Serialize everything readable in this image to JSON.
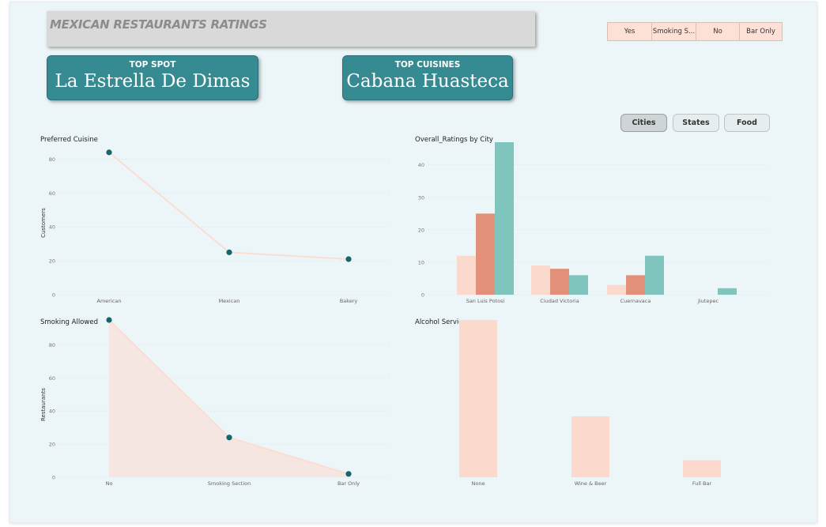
{
  "header": {
    "title": "MEXICAN RESTAURANTS RATINGS"
  },
  "slicer": {
    "items": [
      "Yes",
      "Smoking S...",
      "No",
      "Bar Only"
    ]
  },
  "cards": [
    {
      "label": "TOP SPOT",
      "value": "La Estrella De Dimas"
    },
    {
      "label": "TOP CUISINES",
      "value": "Cabana Huasteca"
    }
  ],
  "toggle": {
    "items": [
      "Cities",
      "States",
      "Food"
    ],
    "active": "Cities"
  },
  "colors": {
    "teal": "#15676b",
    "peach": "#fcd9cd",
    "salmon": "#e2907a",
    "mint": "#7fc4bd",
    "line": "#fcdccf"
  },
  "chart_data": [
    {
      "id": "preferred",
      "type": "line",
      "title": "Preferred Cuisine",
      "ylabel": "Customers",
      "xlabel": "",
      "categories": [
        "American",
        "Mexican",
        "Bakery"
      ],
      "values": [
        84,
        25,
        21
      ],
      "yticks": [
        0,
        20,
        40,
        60,
        80
      ],
      "ylim": [
        0,
        90
      ],
      "grid": true
    },
    {
      "id": "cityratings",
      "type": "bar",
      "title": "Overall_Ratings by City",
      "ylabel": "",
      "xlabel": "",
      "categories": [
        "San Luis Potosi",
        "Ciudad Victoria",
        "Cuernavaca",
        "Jiutepec"
      ],
      "series": [
        {
          "values": [
            12,
            9,
            3,
            0
          ]
        },
        {
          "values": [
            25,
            8,
            6,
            0
          ]
        },
        {
          "values": [
            47,
            6,
            12,
            2
          ]
        }
      ],
      "yticks": [
        0,
        10,
        20,
        30,
        40
      ],
      "ylim": [
        0,
        47
      ],
      "grid": true
    },
    {
      "id": "smoking",
      "type": "area",
      "title": "Smoking Allowed",
      "ylabel": "Restaurants",
      "xlabel": "",
      "categories": [
        "No",
        "Smoking Section",
        "Bar Only"
      ],
      "values": [
        95,
        24,
        2
      ],
      "yticks": [
        0,
        20,
        40,
        60,
        80
      ],
      "ylim": [
        0,
        95
      ],
      "grid": true
    },
    {
      "id": "alcohol",
      "type": "bar",
      "title": "Alcohol Service",
      "ylabel": "",
      "xlabel": "",
      "categories": [
        "None",
        "Wine & Beer",
        "Full Bar"
      ],
      "values": [
        93,
        36,
        10
      ],
      "ylim": [
        0,
        93
      ],
      "grid": false
    }
  ]
}
